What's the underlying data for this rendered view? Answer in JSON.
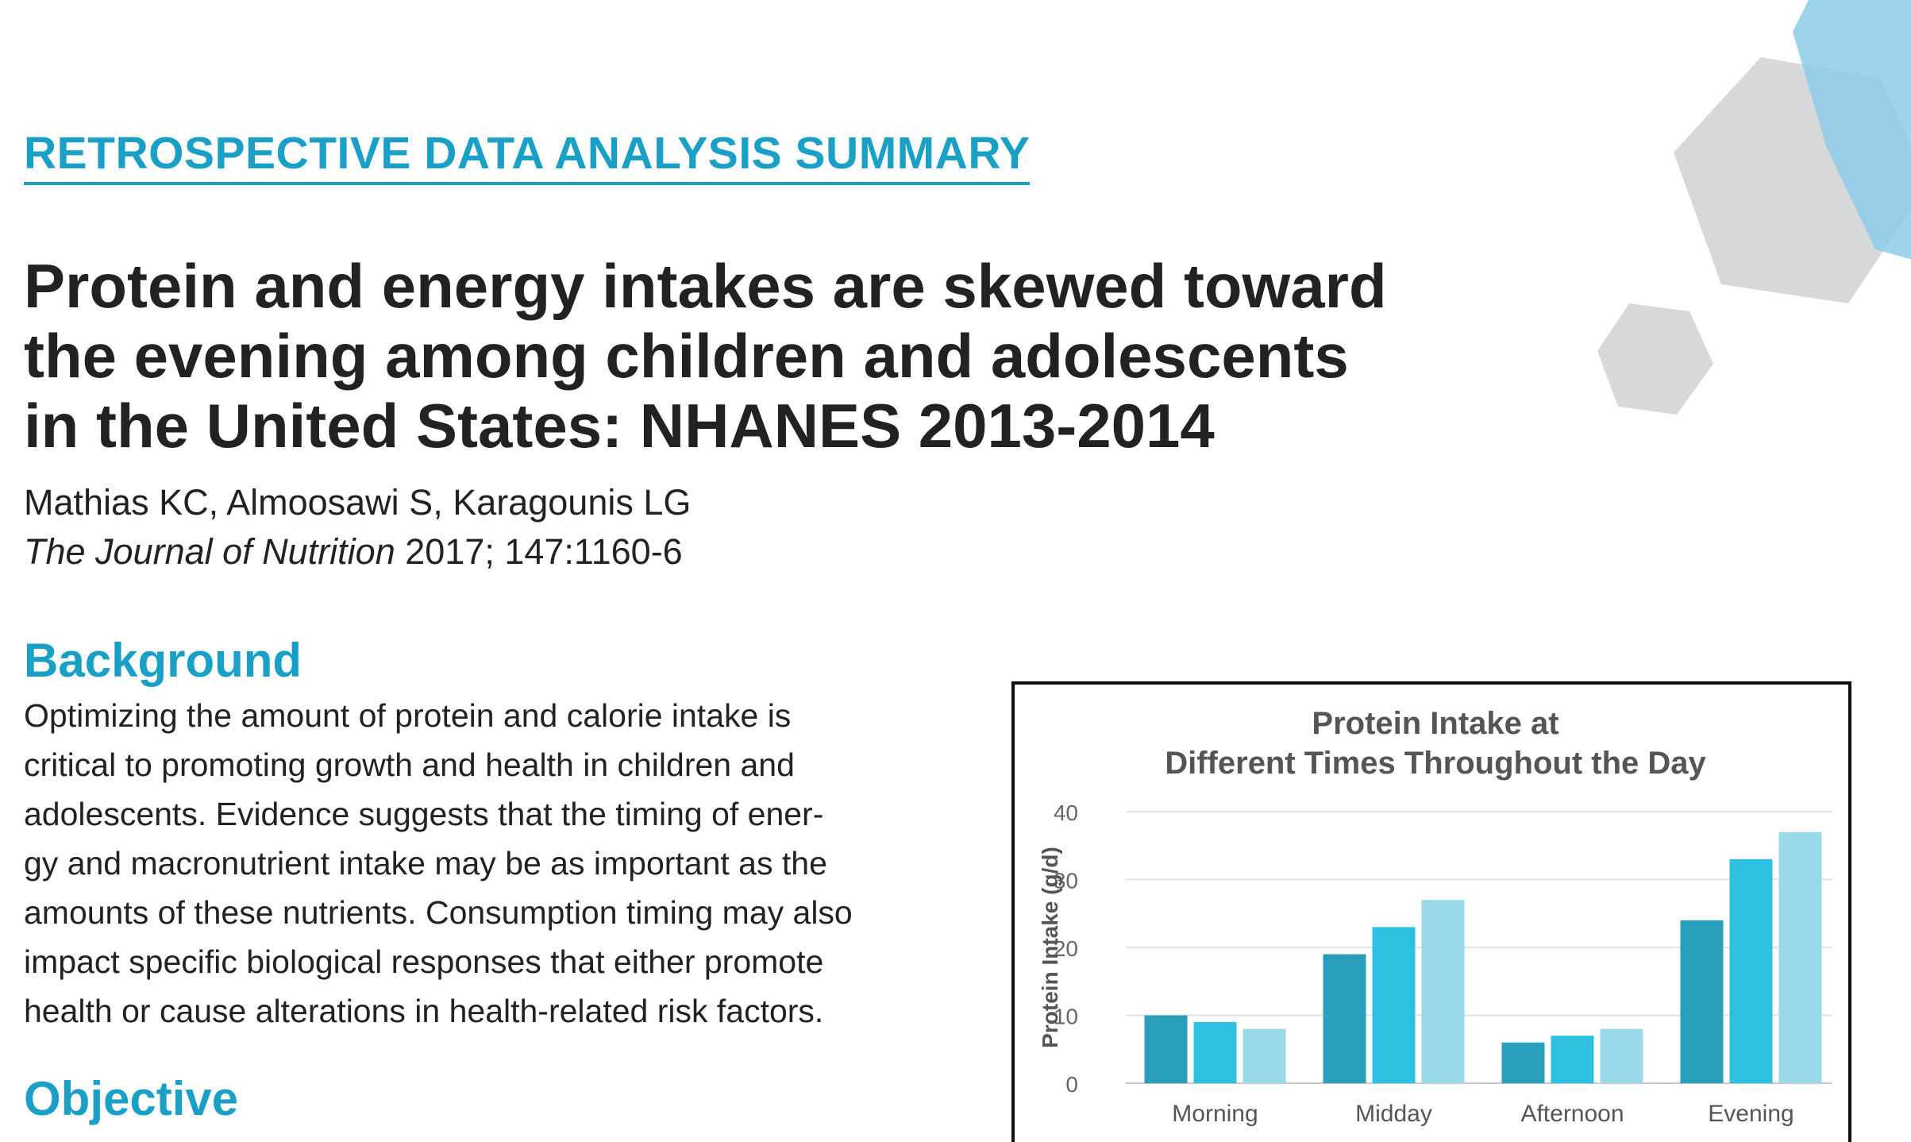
{
  "header": {
    "kicker": "RETROSPECTIVE DATA ANALYSIS SUMMARY",
    "title_lines": [
      "Protein and energy intakes are skewed toward",
      "the evening among children and adolescents",
      "in the United States: NHANES 2013-2014"
    ],
    "authors": "Mathias KC, Almoosawi S, Karagounis LG",
    "journal_name": "The Journal of Nutrition",
    "journal_citation": " 2017; 147:1160-6"
  },
  "background": {
    "heading": "Background",
    "lines": [
      "Optimizing the amount of protein and calorie intake is",
      "critical to promoting growth and health in children and",
      "adolescents. Evidence suggests that the timing of ener-",
      "gy and macronutrient intake may be as important as the",
      "amounts of these nutrients. Consumption timing may also",
      "impact specific biological responses that either promote",
      "health or cause alterations in health-related risk factors."
    ]
  },
  "objective": {
    "heading": "Objective"
  },
  "colors": {
    "accent": "#1aa0c7",
    "series": [
      "#2a9fbc",
      "#2ec0e0",
      "#9ad8ec"
    ],
    "hex_gray": "#d7d8da",
    "hex_blue": "#8ccbe8"
  },
  "chart_data": {
    "type": "bar",
    "title_lines": [
      "Protein Intake at",
      "Different Times Throughout the Day"
    ],
    "ylabel": "Protein Intake (g/d)",
    "xlabel": "",
    "ylim": [
      0,
      40
    ],
    "yticks": [
      0,
      10,
      20,
      30,
      40
    ],
    "grid": true,
    "categories": [
      "Morning",
      "Midday",
      "Afternoon",
      "Evening"
    ],
    "series": [
      {
        "values": [
          10,
          19,
          6,
          24
        ]
      },
      {
        "values": [
          9,
          23,
          7,
          33
        ]
      },
      {
        "values": [
          8,
          27,
          8,
          37
        ]
      }
    ]
  }
}
